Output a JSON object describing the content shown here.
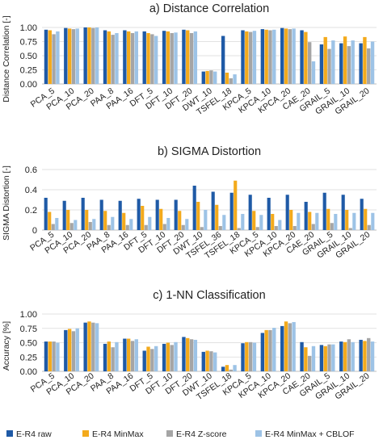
{
  "legend": {
    "placement": "bottom",
    "entries": [
      "E-R4 raw",
      "E-R4 MinMax",
      "E-R4 Z-score",
      "E-R4 MinMax + CBLOF"
    ]
  },
  "colors": {
    "E-R4 raw": "#1f5aa6",
    "E-R4 MinMax": "#f3aa1c",
    "E-R4 Z-score": "#a5a5a5",
    "E-R4 MinMax + CBLOF": "#9dc3e6"
  },
  "chart_data": [
    {
      "type": "bar",
      "title": "a) Distance Correlation",
      "ylabel": "Distance Correlation [-]",
      "ylim": [
        0,
        1.0
      ],
      "yticks": [
        "0.00",
        "0.25",
        "0.50",
        "0.75",
        "1.00"
      ],
      "grid": true,
      "categories": [
        "PCA_5",
        "PCA_10",
        "PCA_20",
        "PAA_8",
        "PAA_16",
        "DFT_5",
        "DFT_10",
        "DFT_20",
        "DWT_10",
        "TSFEL_18",
        "KPCA_5",
        "KPCA_10",
        "KPCA_20",
        "CAE_20",
        "GRAIL_5",
        "GRAIL_10",
        "GRAIL_20"
      ],
      "series": [
        {
          "name": "E-R4 raw",
          "values": [
            0.96,
            0.99,
            1.0,
            0.95,
            0.95,
            0.93,
            0.94,
            0.96,
            0.22,
            0.85,
            0.95,
            0.97,
            0.99,
            0.95,
            0.7,
            0.72,
            0.72
          ]
        },
        {
          "name": "E-R4 MinMax",
          "values": [
            0.95,
            0.98,
            1.0,
            0.93,
            0.93,
            0.9,
            0.93,
            0.95,
            0.23,
            0.2,
            0.93,
            0.96,
            0.98,
            0.92,
            0.83,
            0.84,
            0.83
          ]
        },
        {
          "name": "E-R4 Z-score",
          "values": [
            0.88,
            0.97,
            0.99,
            0.87,
            0.9,
            0.88,
            0.9,
            0.9,
            0.24,
            0.1,
            0.92,
            0.95,
            0.97,
            0.74,
            0.62,
            0.67,
            0.63
          ]
        },
        {
          "name": "E-R4 MinMax + CBLOF",
          "values": [
            0.93,
            0.98,
            1.0,
            0.9,
            0.93,
            0.85,
            0.91,
            0.93,
            0.22,
            0.17,
            0.94,
            0.96,
            0.98,
            0.4,
            0.77,
            0.77,
            0.75
          ]
        }
      ]
    },
    {
      "type": "bar",
      "title": "b) SIGMA Distortion",
      "ylabel": "SIGMA Distortion [-]",
      "ylim": [
        0,
        0.6
      ],
      "yticks": [
        "0",
        "0.2",
        "0.4",
        "0.6"
      ],
      "grid": true,
      "categories": [
        "PCA_5",
        "PCA_10",
        "PCA_20",
        "PAA_8",
        "PAA_16",
        "DFT_5",
        "DFT_10",
        "DFT_20",
        "DWT_10",
        "TSFEL_36",
        "TSFEL_18",
        "KPCA_5",
        "KPCA_10",
        "KPCA_20",
        "CAE_20",
        "GRAIL_5",
        "GRAIL_10",
        "GRAIL_20"
      ],
      "series": [
        {
          "name": "E-R4 raw",
          "values": [
            0.32,
            0.29,
            0.32,
            0.3,
            0.29,
            0.31,
            0.3,
            0.3,
            0.44,
            0.38,
            0.37,
            0.35,
            0.32,
            0.35,
            0.28,
            0.37,
            0.35,
            0.31
          ]
        },
        {
          "name": "E-R4 MinMax",
          "values": [
            0.18,
            0.2,
            0.2,
            0.19,
            0.17,
            0.24,
            0.21,
            0.19,
            0.28,
            0.25,
            0.49,
            0.19,
            0.16,
            0.2,
            0.18,
            0.21,
            0.2,
            0.21
          ]
        },
        {
          "name": "E-R4 Z-score",
          "values": [
            0.06,
            0.07,
            0.08,
            0.05,
            0.05,
            0.05,
            0.06,
            0.05,
            0.03,
            0.04,
            0.02,
            0.03,
            0.04,
            0.04,
            0.06,
            0.07,
            0.02,
            0.05
          ]
        },
        {
          "name": "E-R4 MinMax + CBLOF",
          "values": [
            0.12,
            0.1,
            0.11,
            0.13,
            0.11,
            0.13,
            0.12,
            0.11,
            0.2,
            0.15,
            0.16,
            0.15,
            0.1,
            0.17,
            0.17,
            0.16,
            0.17,
            0.17
          ]
        }
      ]
    },
    {
      "type": "bar",
      "title": "c) 1-NN Classification",
      "ylabel": "Accuracy [%]",
      "ylim": [
        0,
        1.0
      ],
      "yticks": [
        "0.00",
        "0.25",
        "0.50",
        "0.75",
        "1.00"
      ],
      "grid": true,
      "categories": [
        "PCA_5",
        "PCA_10",
        "PCA_20",
        "PAA_8",
        "PAA_16",
        "DFT_5",
        "DFT_10",
        "DFT_20",
        "DWT_10",
        "TSFEL_18",
        "KPCA_5",
        "KPCA_10",
        "KPCA_20",
        "CAE_20",
        "GRAIL_5",
        "GRAIL_10",
        "GRAIL_20"
      ],
      "series": [
        {
          "name": "E-R4 raw",
          "values": [
            0.52,
            0.72,
            0.85,
            0.48,
            0.57,
            0.36,
            0.48,
            0.6,
            0.34,
            0.08,
            0.49,
            0.67,
            0.79,
            0.51,
            0.46,
            0.52,
            0.55
          ]
        },
        {
          "name": "E-R4 MinMax",
          "values": [
            0.52,
            0.74,
            0.87,
            0.52,
            0.57,
            0.43,
            0.5,
            0.58,
            0.36,
            0.11,
            0.51,
            0.72,
            0.87,
            0.42,
            0.44,
            0.51,
            0.53
          ]
        },
        {
          "name": "E-R4 Z-score",
          "values": [
            0.52,
            0.7,
            0.85,
            0.42,
            0.53,
            0.39,
            0.46,
            0.56,
            0.35,
            0.03,
            0.51,
            0.72,
            0.84,
            0.27,
            0.47,
            0.56,
            0.58
          ]
        },
        {
          "name": "E-R4 MinMax + CBLOF",
          "values": [
            0.5,
            0.75,
            0.84,
            0.51,
            0.56,
            0.44,
            0.51,
            0.55,
            0.33,
            0.11,
            0.5,
            0.76,
            0.86,
            0.44,
            0.47,
            0.51,
            0.52
          ]
        }
      ]
    }
  ]
}
